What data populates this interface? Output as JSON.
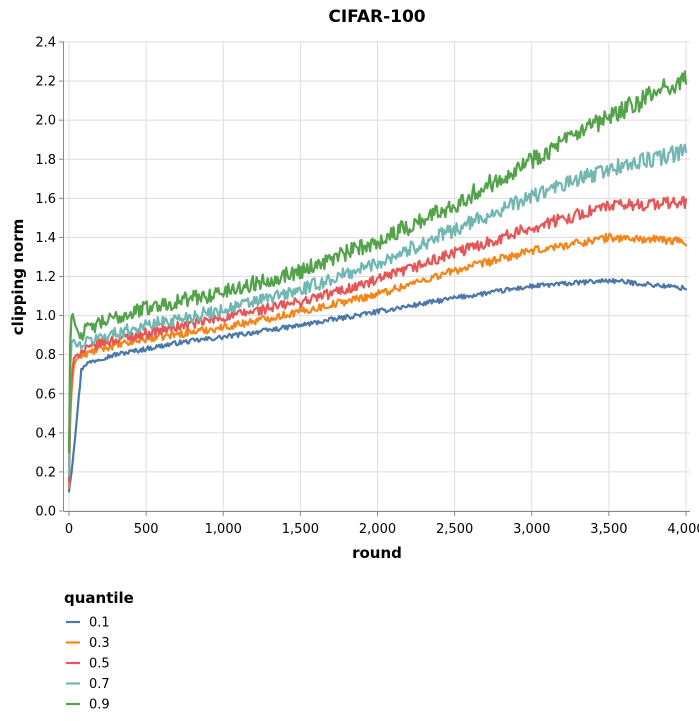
{
  "chart_data": {
    "type": "line",
    "title": "CIFAR-100",
    "xlabel": "round",
    "ylabel": "clipping norm",
    "xlim": [
      0,
      4000
    ],
    "ylim": [
      0,
      2.4
    ],
    "x_ticks": [
      0,
      500,
      1000,
      1500,
      2000,
      2500,
      3000,
      3500,
      4000
    ],
    "x_tick_labels": [
      "0",
      "500",
      "1,000",
      "1,500",
      "2,000",
      "2,500",
      "3,000",
      "3,500",
      "4,000"
    ],
    "y_ticks": [
      0,
      0.2,
      0.4,
      0.6,
      0.8,
      1.0,
      1.2,
      1.4,
      1.6,
      1.8,
      2.0,
      2.2,
      2.4
    ],
    "y_tick_labels": [
      "0.0",
      "0.2",
      "0.4",
      "0.6",
      "0.8",
      "1.0",
      "1.2",
      "1.4",
      "1.6",
      "1.8",
      "2.0",
      "2.2",
      "2.4"
    ],
    "grid": true,
    "legend": {
      "title": "quantile",
      "position": "bottom-left"
    },
    "series": [
      {
        "name": "0.1",
        "color": "#4c78a8",
        "x": [
          0,
          20,
          40,
          60,
          80,
          100,
          200,
          300,
          500,
          700,
          1000,
          1500,
          2000,
          2500,
          3000,
          3500,
          4000
        ],
        "y": [
          0.1,
          0.22,
          0.38,
          0.55,
          0.72,
          0.75,
          0.78,
          0.8,
          0.83,
          0.86,
          0.89,
          0.95,
          1.02,
          1.09,
          1.15,
          1.18,
          1.14
        ]
      },
      {
        "name": "0.3",
        "color": "#f58518",
        "x": [
          0,
          10,
          30,
          50,
          100,
          200,
          500,
          1000,
          1500,
          2000,
          2500,
          3000,
          3500,
          4000
        ],
        "y": [
          0.12,
          0.55,
          0.74,
          0.78,
          0.8,
          0.83,
          0.88,
          0.94,
          1.02,
          1.11,
          1.23,
          1.33,
          1.4,
          1.38
        ]
      },
      {
        "name": "0.5",
        "color": "#e45756",
        "x": [
          0,
          10,
          30,
          50,
          100,
          200,
          500,
          1000,
          1500,
          2000,
          2500,
          3000,
          3500,
          4000
        ],
        "y": [
          0.15,
          0.62,
          0.78,
          0.8,
          0.82,
          0.86,
          0.91,
          0.99,
          1.07,
          1.18,
          1.32,
          1.45,
          1.56,
          1.58
        ]
      },
      {
        "name": "0.7",
        "color": "#72b7b2",
        "x": [
          0,
          10,
          30,
          50,
          100,
          200,
          500,
          1000,
          1500,
          2000,
          2500,
          3000,
          3500,
          4000
        ],
        "y": [
          0.18,
          0.85,
          0.88,
          0.84,
          0.86,
          0.89,
          0.95,
          1.03,
          1.13,
          1.27,
          1.44,
          1.61,
          1.75,
          1.84
        ]
      },
      {
        "name": "0.9",
        "color": "#54a24b",
        "x": [
          0,
          10,
          25,
          40,
          70,
          100,
          200,
          500,
          1000,
          1500,
          2000,
          2500,
          3000,
          3500,
          4000
        ],
        "y": [
          0.3,
          0.98,
          1.01,
          0.95,
          0.9,
          0.92,
          0.96,
          1.04,
          1.12,
          1.23,
          1.38,
          1.57,
          1.8,
          2.01,
          2.22
        ]
      }
    ]
  }
}
